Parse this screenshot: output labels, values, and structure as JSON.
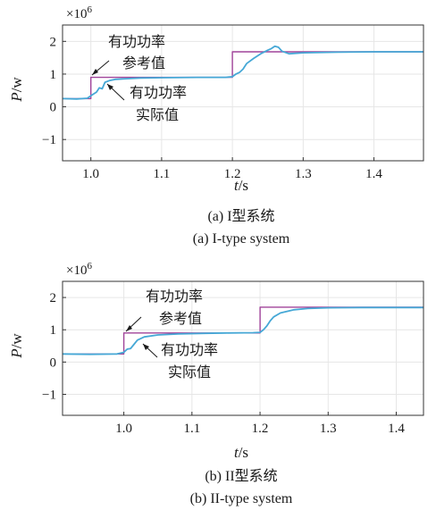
{
  "chart_data": [
    {
      "type": "line",
      "multiplier": "×10",
      "multiplier_exp": "6",
      "xlabel": "t",
      "xunit": "/s",
      "ylabel": "P",
      "yunit": "/w",
      "xlim": [
        0.96,
        1.47
      ],
      "ylim": [
        -1.65,
        2.5
      ],
      "xticks": [
        1.0,
        1.1,
        1.2,
        1.3,
        1.4
      ],
      "xtick_labels": [
        "1.0",
        "1.1",
        "1.2",
        "1.3",
        "1.4"
      ],
      "yticks": [
        2,
        1,
        0,
        -1
      ],
      "ytick_labels": [
        "2",
        "1",
        "0",
        "−1"
      ],
      "grid": true,
      "series": [
        {
          "name": "有功功率参考值",
          "color": "#a0449a",
          "x": [
            0.96,
            1.0,
            1.0,
            1.2,
            1.2,
            1.47
          ],
          "y": [
            0.25,
            0.25,
            0.9,
            0.9,
            1.68,
            1.68
          ]
        },
        {
          "name": "有功功率实际值",
          "color": "#46a8d6",
          "x": [
            0.96,
            0.98,
            0.995,
            1.003,
            1.008,
            1.012,
            1.016,
            1.02,
            1.026,
            1.035,
            1.05,
            1.07,
            1.1,
            1.15,
            1.19,
            1.2,
            1.205,
            1.21,
            1.215,
            1.22,
            1.23,
            1.24,
            1.25,
            1.255,
            1.26,
            1.265,
            1.27,
            1.28,
            1.3,
            1.35,
            1.4,
            1.47
          ],
          "y": [
            0.25,
            0.24,
            0.26,
            0.38,
            0.45,
            0.58,
            0.55,
            0.75,
            0.8,
            0.84,
            0.86,
            0.88,
            0.89,
            0.9,
            0.9,
            0.92,
            1.0,
            1.05,
            1.15,
            1.32,
            1.48,
            1.62,
            1.73,
            1.78,
            1.85,
            1.82,
            1.7,
            1.62,
            1.65,
            1.67,
            1.68,
            1.68
          ]
        }
      ],
      "annotations": [
        {
          "lines": [
            "有功功率",
            "参考值"
          ]
        },
        {
          "lines": [
            "有功功率",
            "实际值"
          ]
        }
      ],
      "caption": [
        "(a) I型系统",
        "(a) I-type system"
      ]
    },
    {
      "type": "line",
      "multiplier": "×10",
      "multiplier_exp": "6",
      "xlabel": "t",
      "xunit": "/s",
      "ylabel": "P",
      "yunit": "/w",
      "xlim": [
        0.91,
        1.44
      ],
      "ylim": [
        -1.65,
        2.5
      ],
      "xticks": [
        1.0,
        1.1,
        1.2,
        1.3,
        1.4
      ],
      "xtick_labels": [
        "1.0",
        "1.1",
        "1.2",
        "1.3",
        "1.4"
      ],
      "yticks": [
        2,
        1,
        0,
        -1
      ],
      "ytick_labels": [
        "2",
        "1",
        "0",
        "−1"
      ],
      "grid": true,
      "series": [
        {
          "name": "有功功率参考值",
          "color": "#a0449a",
          "x": [
            0.91,
            1.0,
            1.0,
            1.2,
            1.2,
            1.44
          ],
          "y": [
            0.25,
            0.25,
            0.9,
            0.9,
            1.7,
            1.7
          ]
        },
        {
          "name": "有功功率实际值",
          "color": "#46a8d6",
          "x": [
            0.91,
            0.95,
            0.99,
            1.0,
            1.005,
            1.01,
            1.015,
            1.02,
            1.03,
            1.05,
            1.08,
            1.12,
            1.15,
            1.19,
            1.2,
            1.205,
            1.21,
            1.215,
            1.22,
            1.23,
            1.25,
            1.27,
            1.3,
            1.35,
            1.44
          ],
          "y": [
            0.25,
            0.24,
            0.25,
            0.3,
            0.4,
            0.42,
            0.55,
            0.68,
            0.78,
            0.84,
            0.87,
            0.89,
            0.9,
            0.91,
            0.92,
            1.0,
            1.12,
            1.28,
            1.4,
            1.52,
            1.62,
            1.66,
            1.68,
            1.69,
            1.69
          ]
        }
      ],
      "annotations": [
        {
          "lines": [
            "有功功率",
            "参考值"
          ]
        },
        {
          "lines": [
            "有功功率",
            "实际值"
          ]
        }
      ],
      "caption": [
        "(b) II型系统",
        "(b) II-type system"
      ]
    }
  ]
}
